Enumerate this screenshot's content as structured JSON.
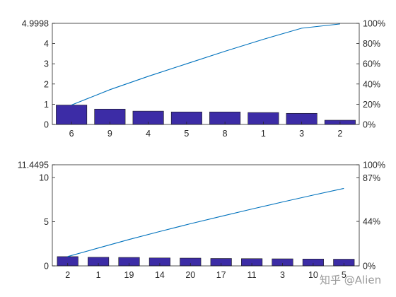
{
  "chart_data": [
    {
      "type": "bar",
      "subtype": "pareto",
      "categories": [
        "6",
        "9",
        "4",
        "5",
        "8",
        "1",
        "3",
        "2"
      ],
      "values": [
        0.96,
        0.76,
        0.66,
        0.62,
        0.62,
        0.59,
        0.55,
        0.21
      ],
      "ylim": [
        0,
        4.9998
      ],
      "yticks": [
        0,
        1,
        2,
        3,
        4,
        4.9998
      ],
      "ytick_labels": [
        "0",
        "1",
        "2",
        "3",
        "4",
        "4.9998"
      ],
      "y2lim": [
        0,
        100
      ],
      "y2ticks": [
        0,
        20,
        40,
        60,
        80,
        100
      ],
      "y2tick_labels": [
        "0%",
        "20%",
        "40%",
        "60%",
        "80%",
        "100%"
      ],
      "cumulative_percent": [
        19.2,
        34.4,
        47.6,
        60.0,
        72.4,
        84.2,
        95.2,
        99.4
      ],
      "bar_color": "#3c2ca6",
      "line_color": "#0072bd",
      "grid": false,
      "legend": "none"
    },
    {
      "type": "bar",
      "subtype": "pareto",
      "categories": [
        "2",
        "1",
        "19",
        "14",
        "20",
        "17",
        "11",
        "3",
        "10",
        "5"
      ],
      "values": [
        1.05,
        0.98,
        0.96,
        0.9,
        0.88,
        0.84,
        0.82,
        0.8,
        0.78,
        0.76
      ],
      "ylim": [
        0,
        11.4495
      ],
      "yticks": [
        0,
        5,
        10,
        11.4495
      ],
      "ytick_labels": [
        "0",
        "5",
        "10",
        "11.4495"
      ],
      "y2lim": [
        0,
        100
      ],
      "y2ticks": [
        0,
        44,
        87,
        100
      ],
      "y2tick_labels": [
        "0%",
        "44%",
        "87%",
        "100%"
      ],
      "cumulative_percent": [
        9.2,
        17.7,
        26.1,
        34.0,
        41.7,
        49.0,
        56.2,
        63.2,
        70.0,
        76.6
      ],
      "bar_color": "#3c2ca6",
      "line_color": "#0072bd",
      "grid": false,
      "legend": "none"
    }
  ],
  "watermark": "知乎 @Alien"
}
